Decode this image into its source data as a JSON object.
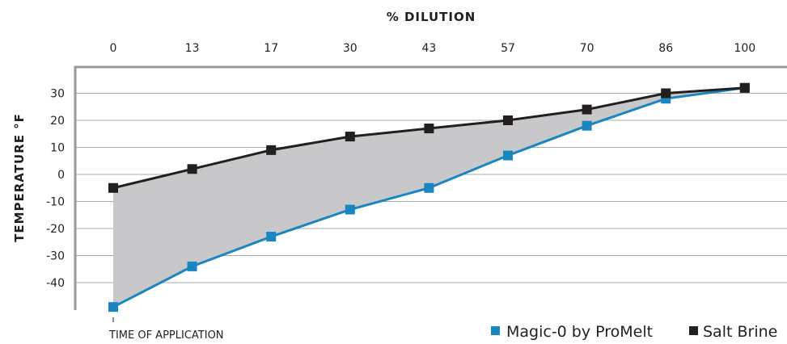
{
  "chart_data": {
    "type": "area",
    "xlabel": "% DILUTION",
    "ylabel": "TEMPERATURE °F",
    "categories": [
      "0",
      "13",
      "17",
      "30",
      "43",
      "57",
      "70",
      "86",
      "100"
    ],
    "y_ticks": [
      30,
      20,
      10,
      0,
      -10,
      -20,
      -30,
      -40
    ],
    "ylim": [
      -50,
      36
    ],
    "grid": true,
    "legend_position": "bottom-right",
    "annotation": "TIME OF APPLICATION",
    "series": [
      {
        "name": "Magic-0 by ProMelt",
        "color": "#1a86bf",
        "values": [
          -49,
          -34,
          -23,
          -13,
          -5,
          7,
          18,
          28,
          32
        ]
      },
      {
        "name": "Salt Brine",
        "color": "#231f20",
        "values": [
          -5,
          2,
          9,
          14,
          17,
          20,
          24,
          30,
          32
        ]
      }
    ],
    "fill_between_color": "#c8c8ca"
  }
}
